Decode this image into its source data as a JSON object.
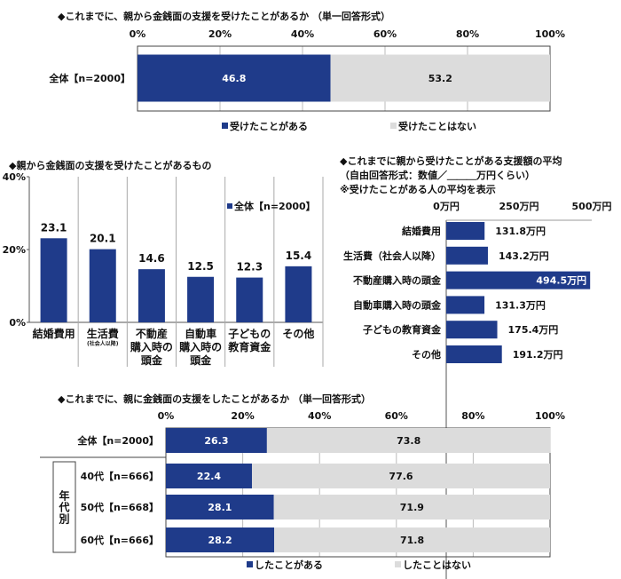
{
  "colors": {
    "blue": "#1f3b8a",
    "grey": "#dcdcdc",
    "axis": "#555555"
  },
  "chart_data": [
    {
      "type": "bar",
      "orientation": "horizontal",
      "stacked": true,
      "title": "◆これまでに、親から金銭面の支援を受けたことがあるか （単一回答形式）",
      "categories": [
        "全体【n=2000】"
      ],
      "series": [
        {
          "name": "受けたことがある",
          "values": [
            46.8
          ]
        },
        {
          "name": "受けたことはない",
          "values": [
            53.2
          ]
        }
      ],
      "xticks": [
        "0%",
        "20%",
        "40%",
        "60%",
        "80%",
        "100%"
      ],
      "xlim": [
        0,
        100
      ],
      "grid": true,
      "legend": "bottom"
    },
    {
      "type": "bar",
      "orientation": "vertical",
      "title": "◆親から金銭面の支援を受けたことがあるもの",
      "categories": [
        [
          "結婚費用"
        ],
        [
          "生活費",
          "(社会人以降)"
        ],
        [
          "不動産",
          "購入時の",
          "頭金"
        ],
        [
          "自動車",
          "購入時の",
          "頭金"
        ],
        [
          "子どもの",
          "教育資金"
        ],
        [
          "その他"
        ]
      ],
      "series": [
        {
          "name": "全体【n=2000】",
          "values": [
            23.1,
            20.1,
            14.6,
            12.5,
            12.3,
            15.4
          ]
        }
      ],
      "yticks": [
        "0%",
        "20%",
        "40%"
      ],
      "ylim": [
        0,
        40
      ],
      "legend": "top-right"
    },
    {
      "type": "bar",
      "orientation": "horizontal",
      "title": [
        "◆これまでに親から受けたことがある支援額の平均",
        "（自由回答形式：数値／＿＿＿万円くらい）",
        "※受けたことがある人の平均を表示"
      ],
      "categories": [
        "結婚費用",
        "生活費（社会人以降）",
        "不動産購入時の頭金",
        "自動車購入時の頭金",
        "子どもの教育資金",
        "その他"
      ],
      "values": [
        131.8,
        143.2,
        494.5,
        131.3,
        175.4,
        191.2
      ],
      "value_labels": [
        "131.8万円",
        "143.2万円",
        "494.5万円",
        "131.3万円",
        "175.4万円",
        "191.2万円"
      ],
      "xticks": [
        "0万円",
        "250万円",
        "500万円"
      ],
      "xlim": [
        0,
        500
      ]
    },
    {
      "type": "bar",
      "orientation": "horizontal",
      "stacked": true,
      "title": "◆これまでに、親に金銭面の支援をしたことがあるか （単一回答形式）",
      "categories": [
        "全体【n=2000】",
        "40代【n=666】",
        "50代【n=668】",
        "60代【n=666】"
      ],
      "group_label": "年代別",
      "series": [
        {
          "name": "したことがある",
          "values": [
            26.3,
            22.4,
            28.1,
            28.2
          ]
        },
        {
          "name": "したことはない",
          "values": [
            73.8,
            77.6,
            71.9,
            71.8
          ]
        }
      ],
      "xticks": [
        "0%",
        "20%",
        "40%",
        "60%",
        "80%",
        "100%"
      ],
      "xlim": [
        0,
        100
      ],
      "grid": true,
      "legend": "bottom"
    }
  ]
}
